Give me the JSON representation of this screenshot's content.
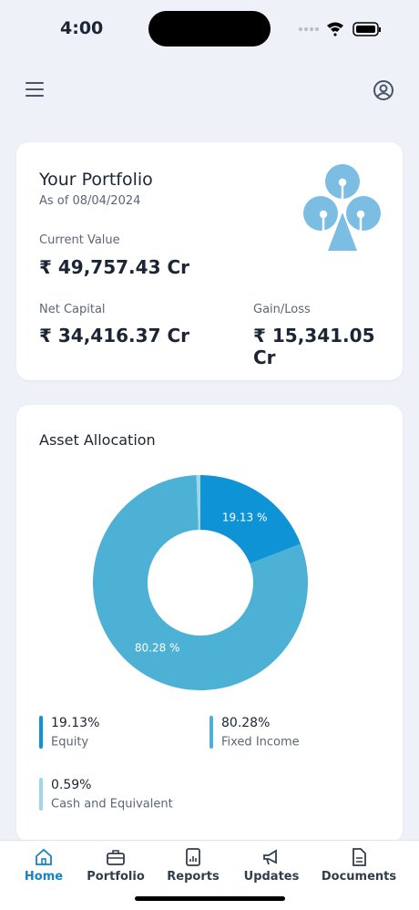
{
  "status_bar": {
    "time": "4:00"
  },
  "portfolio": {
    "title": "Your Portfolio",
    "as_of": "As of 08/04/2024",
    "current_value_label": "Current Value",
    "current_value": "₹ 49,757.43 Cr",
    "net_capital_label": "Net Capital",
    "net_capital": "₹ 34,416.37 Cr",
    "gain_loss_label": "Gain/Loss",
    "gain_loss": "₹ 15,341.05 Cr"
  },
  "chart_data": {
    "type": "donut",
    "title": "Asset Allocation",
    "categories": [
      "Equity",
      "Fixed Income",
      "Cash and Equivalent"
    ],
    "values": [
      19.13,
      80.28,
      0.59
    ],
    "value_labels": [
      "19.13 %",
      "80.28 %",
      null
    ],
    "legend_labels": [
      "19.13%",
      "80.28%",
      "0.59%"
    ],
    "colors": [
      "#0e94d6",
      "#4db1d5",
      "#9fd6ea"
    ]
  },
  "nav": {
    "items": [
      "Home",
      "Portfolio",
      "Reports",
      "Updates",
      "Documents"
    ],
    "active": 0
  }
}
